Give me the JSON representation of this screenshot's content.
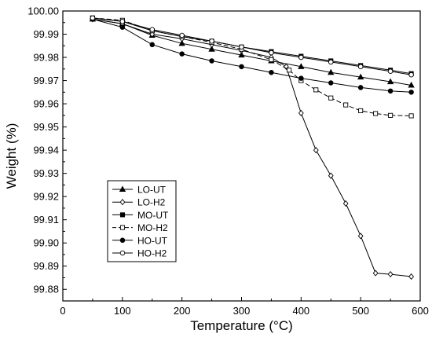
{
  "chart_data": {
    "type": "line",
    "title": "",
    "xlabel": "Temperature (°C)",
    "ylabel": "Weight (%)",
    "xlim": [
      0,
      600
    ],
    "ylim": [
      99.875,
      100.0
    ],
    "x_ticks": [
      0,
      100,
      200,
      300,
      400,
      500,
      600
    ],
    "y_ticks": [
      99.88,
      99.89,
      99.9,
      99.91,
      99.92,
      99.93,
      99.94,
      99.95,
      99.96,
      99.97,
      99.98,
      99.99,
      100.0
    ],
    "x_tick_labels": [
      "0",
      "100",
      "200",
      "300",
      "400",
      "500",
      "600"
    ],
    "y_tick_labels": [
      "99.88",
      "99.89",
      "99.90",
      "99.91",
      "99.92",
      "99.93",
      "99.94",
      "99.95",
      "99.96",
      "99.97",
      "99.98",
      "99.99",
      "100.00"
    ],
    "grid": false,
    "legend_position": "bottom-left",
    "series": [
      {
        "name": "LO-UT",
        "marker": "filled-triangle",
        "line_style": "solid",
        "x": [
          50,
          100,
          150,
          200,
          250,
          300,
          350,
          400,
          450,
          500,
          550,
          585
        ],
        "y": [
          99.9965,
          99.9945,
          99.9895,
          99.986,
          99.9835,
          99.981,
          99.9785,
          99.976,
          99.9735,
          99.9715,
          99.9695,
          99.968
        ]
      },
      {
        "name": "LO-H2",
        "marker": "open-diamond",
        "line_style": "solid",
        "x": [
          50,
          100,
          150,
          200,
          250,
          300,
          350,
          375,
          400,
          425,
          450,
          475,
          500,
          525,
          550,
          585
        ],
        "y": [
          99.9965,
          99.9945,
          99.99,
          99.988,
          99.9855,
          99.983,
          99.98,
          99.976,
          99.956,
          99.94,
          99.929,
          99.917,
          99.903,
          99.887,
          99.8865,
          99.8855
        ]
      },
      {
        "name": "MO-UT",
        "marker": "filled-square",
        "line_style": "solid",
        "x": [
          50,
          100,
          150,
          200,
          250,
          300,
          350,
          400,
          450,
          500,
          550,
          585
        ],
        "y": [
          99.997,
          99.9955,
          99.9915,
          99.989,
          99.987,
          99.9845,
          99.9825,
          99.9805,
          99.9785,
          99.9765,
          99.9745,
          99.973
        ]
      },
      {
        "name": "MO-H2",
        "marker": "open-square",
        "line_style": "dashed",
        "x": [
          50,
          100,
          150,
          200,
          250,
          300,
          350,
          380,
          400,
          425,
          450,
          475,
          500,
          525,
          550,
          585
        ],
        "y": [
          99.997,
          99.996,
          99.9915,
          99.989,
          99.9865,
          99.9835,
          99.979,
          99.9745,
          99.97,
          99.966,
          99.9625,
          99.9595,
          99.957,
          99.9558,
          99.955,
          99.9548
        ]
      },
      {
        "name": "HO-UT",
        "marker": "filled-circle",
        "line_style": "solid",
        "x": [
          50,
          100,
          150,
          200,
          250,
          300,
          350,
          400,
          450,
          500,
          550,
          585
        ],
        "y": [
          99.9965,
          99.993,
          99.9855,
          99.9815,
          99.9785,
          99.976,
          99.9735,
          99.971,
          99.969,
          99.967,
          99.9655,
          99.965
        ]
      },
      {
        "name": "HO-H2",
        "marker": "open-circle",
        "line_style": "solid",
        "x": [
          50,
          100,
          150,
          200,
          250,
          300,
          350,
          400,
          450,
          500,
          550,
          585
        ],
        "y": [
          99.997,
          99.9955,
          99.992,
          99.9895,
          99.987,
          99.9845,
          99.982,
          99.98,
          99.978,
          99.976,
          99.974,
          99.9725
        ]
      }
    ]
  }
}
